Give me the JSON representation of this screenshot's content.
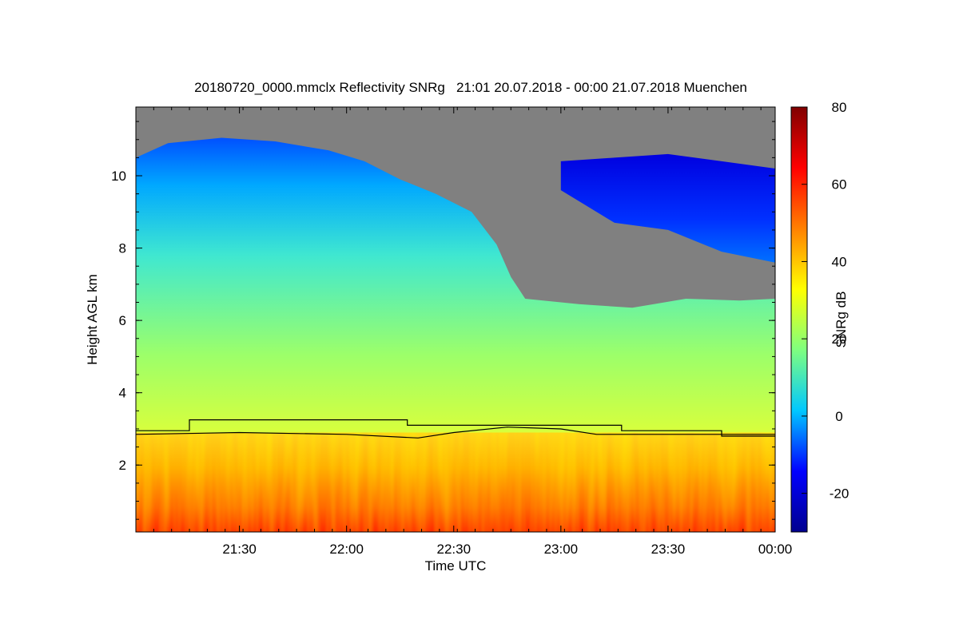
{
  "chart_data": {
    "type": "heatmap",
    "title": "20180720_0000.mmclx Reflectivity SNRg   21:01 20.07.2018 - 00:00 21.07.2018 Muenchen",
    "xlabel": "Time UTC",
    "ylabel": "Height AGL km",
    "colorbar_label": "SNRg dB",
    "x_range": [
      "21:01",
      "00:00"
    ],
    "y_range": [
      0.15,
      11.9
    ],
    "x_ticks": [
      "21:30",
      "22:00",
      "22:30",
      "23:00",
      "23:30",
      "00:00"
    ],
    "y_ticks": [
      2,
      4,
      6,
      8,
      10
    ],
    "colorbar_range": [
      -30,
      80
    ],
    "colorbar_ticks": [
      -20,
      0,
      20,
      40,
      60,
      80
    ],
    "colormap": [
      "#00008f",
      "#0000ff",
      "#00c8ff",
      "#7fff7f",
      "#ffff00",
      "#ff8000",
      "#ff0000",
      "#800000"
    ],
    "missing_color": "#808080",
    "cloud_top_km": [
      {
        "t": "21:01",
        "h": 10.5
      },
      {
        "t": "21:10",
        "h": 10.9
      },
      {
        "t": "21:25",
        "h": 11.05
      },
      {
        "t": "21:40",
        "h": 10.95
      },
      {
        "t": "21:55",
        "h": 10.7
      },
      {
        "t": "22:05",
        "h": 10.4
      },
      {
        "t": "22:15",
        "h": 9.9
      },
      {
        "t": "22:25",
        "h": 9.5
      },
      {
        "t": "22:35",
        "h": 9.0
      },
      {
        "t": "22:42",
        "h": 8.1
      },
      {
        "t": "22:46",
        "h": 7.2
      },
      {
        "t": "22:50",
        "h": 6.6
      },
      {
        "t": "23:05",
        "h": 6.45
      },
      {
        "t": "23:20",
        "h": 6.35
      },
      {
        "t": "23:35",
        "h": 6.6
      },
      {
        "t": "23:50",
        "h": 6.55
      },
      {
        "t": "00:00",
        "h": 6.6
      }
    ],
    "upper_layer_km": [
      {
        "t": "23:00",
        "base": 9.6,
        "top": 10.4
      },
      {
        "t": "23:15",
        "base": 8.7,
        "top": 10.5
      },
      {
        "t": "23:30",
        "base": 8.5,
        "top": 10.6
      },
      {
        "t": "23:45",
        "base": 7.9,
        "top": 10.4
      },
      {
        "t": "00:00",
        "base": 7.6,
        "top": 10.2
      }
    ],
    "high_snr_layer_top_km": 2.9,
    "lines": [
      {
        "name": "",
        "points": [
          {
            "t": "21:01",
            "h": 2.95
          },
          {
            "t": "21:16",
            "h": 2.95
          },
          {
            "t": "21:16",
            "h": 3.25
          },
          {
            "t": "22:17",
            "h": 3.25
          },
          {
            "t": "22:17",
            "h": 3.1
          },
          {
            "t": "23:17",
            "h": 3.1
          },
          {
            "t": "23:17",
            "h": 2.95
          },
          {
            "t": "23:45",
            "h": 2.95
          },
          {
            "t": "23:45",
            "h": 2.8
          },
          {
            "t": "00:00",
            "h": 2.8
          }
        ]
      },
      {
        "name": "",
        "points": [
          {
            "t": "21:01",
            "h": 2.85
          },
          {
            "t": "21:30",
            "h": 2.9
          },
          {
            "t": "22:00",
            "h": 2.85
          },
          {
            "t": "22:20",
            "h": 2.75
          },
          {
            "t": "22:30",
            "h": 2.9
          },
          {
            "t": "22:45",
            "h": 3.05
          },
          {
            "t": "23:00",
            "h": 3.0
          },
          {
            "t": "23:10",
            "h": 2.85
          },
          {
            "t": "23:40",
            "h": 2.85
          },
          {
            "t": "00:00",
            "h": 2.85
          }
        ]
      }
    ]
  }
}
